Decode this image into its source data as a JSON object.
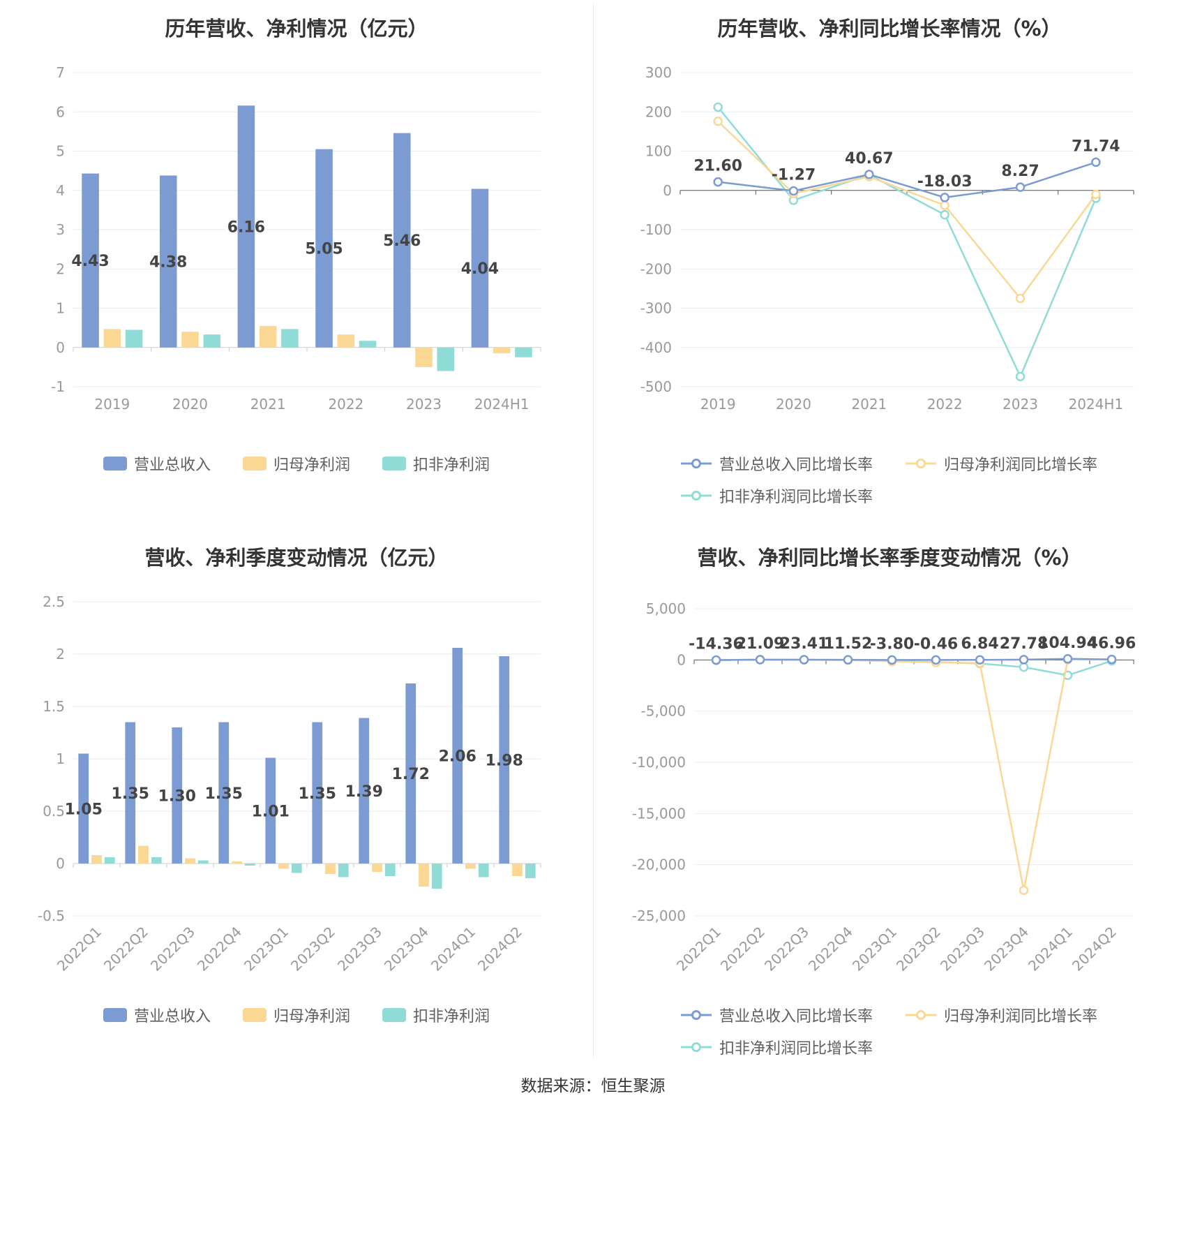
{
  "footer": {
    "text": "数据来源：恒生聚源"
  },
  "theme": {
    "grid": "#E4EDF5",
    "axis_text": "#999999",
    "data_label": "#444444",
    "zero_bar": "#CCCCCC",
    "zero_line": "#555555",
    "title": "#333333",
    "legend_text": "#5F5F5F",
    "divider": "#EAEAEA",
    "blue": "#7B9BD2",
    "yellow": "#FAD893",
    "teal": "#8FDCD6"
  },
  "chart_data": [
    {
      "type": "bar",
      "title": "历年营收、净利情况（亿元）",
      "categories": [
        "2019",
        "2020",
        "2021",
        "2022",
        "2023",
        "2024H1"
      ],
      "series": [
        {
          "name": "营业总收入",
          "color": "#7B9BD2",
          "labeled": true,
          "values": [
            4.43,
            4.38,
            6.16,
            5.05,
            5.46,
            4.04
          ]
        },
        {
          "name": "归母净利润",
          "color": "#FAD893",
          "labeled": false,
          "values": [
            0.47,
            0.4,
            0.55,
            0.33,
            -0.5,
            -0.15
          ]
        },
        {
          "name": "扣非净利润",
          "color": "#8FDCD6",
          "labeled": false,
          "values": [
            0.45,
            0.33,
            0.47,
            0.17,
            -0.6,
            -0.25
          ]
        }
      ],
      "ylim": [
        -1,
        7
      ],
      "ystep": 1,
      "grid": true,
      "legend_position": "bottom"
    },
    {
      "type": "line",
      "title": "历年营收、净利同比增长率情况（%）",
      "categories": [
        "2019",
        "2020",
        "2021",
        "2022",
        "2023",
        "2024H1"
      ],
      "series": [
        {
          "name": "营业总收入同比增长率",
          "color": "#7B9BD2",
          "labeled": true,
          "values": [
            21.6,
            -1.27,
            40.67,
            -18.03,
            8.27,
            71.74
          ]
        },
        {
          "name": "归母净利润同比增长率",
          "color": "#FAD893",
          "labeled": false,
          "values": [
            176,
            -8,
            35,
            -38,
            -275,
            -10
          ]
        },
        {
          "name": "扣非净利润同比增长率",
          "color": "#8FDCD6",
          "labeled": false,
          "values": [
            212,
            -25,
            40,
            -62,
            -474,
            -20
          ]
        }
      ],
      "ylim": [
        -500,
        300
      ],
      "ystep": 100,
      "grid": true,
      "legend_position": "bottom"
    },
    {
      "type": "bar",
      "title": "营收、净利季度变动情况（亿元）",
      "categories": [
        "2022Q1",
        "2022Q2",
        "2022Q3",
        "2022Q4",
        "2023Q1",
        "2023Q2",
        "2023Q3",
        "2023Q4",
        "2024Q1",
        "2024Q2"
      ],
      "series": [
        {
          "name": "营业总收入",
          "color": "#7B9BD2",
          "labeled": true,
          "values": [
            1.05,
            1.35,
            1.3,
            1.35,
            1.01,
            1.35,
            1.39,
            1.72,
            2.06,
            1.98
          ]
        },
        {
          "name": "归母净利润",
          "color": "#FAD893",
          "labeled": false,
          "values": [
            0.08,
            0.17,
            0.05,
            0.02,
            -0.05,
            -0.1,
            -0.08,
            -0.22,
            -0.05,
            -0.12
          ]
        },
        {
          "name": "扣非净利润",
          "color": "#8FDCD6",
          "labeled": false,
          "values": [
            0.06,
            0.06,
            0.03,
            -0.02,
            -0.09,
            -0.13,
            -0.12,
            -0.24,
            -0.13,
            -0.14
          ]
        }
      ],
      "ylim": [
        -0.5,
        2.5
      ],
      "ystep": 0.5,
      "grid": true,
      "legend_position": "bottom"
    },
    {
      "type": "line",
      "title": "营收、净利同比增长率季度变动情况（%）",
      "categories": [
        "2022Q1",
        "2022Q2",
        "2022Q3",
        "2022Q4",
        "2023Q1",
        "2023Q2",
        "2023Q3",
        "2023Q4",
        "2024Q1",
        "2024Q2"
      ],
      "series": [
        {
          "name": "营业总收入同比增长率",
          "color": "#7B9BD2",
          "labeled": true,
          "values": [
            -14.36,
            21.09,
            23.41,
            11.52,
            -3.8,
            -0.46,
            6.84,
            27.78,
            104.94,
            46.96
          ]
        },
        {
          "name": "归母净利润同比增长率",
          "color": "#FAD893",
          "labeled": false,
          "values": [
            -35,
            45,
            15,
            -20,
            -150,
            -250,
            -300,
            -22500,
            25,
            40
          ]
        },
        {
          "name": "扣非净利润同比增长率",
          "color": "#8FDCD6",
          "labeled": false,
          "values": [
            -30,
            40,
            10,
            -15,
            -120,
            -220,
            -350,
            -700,
            -1500,
            -90
          ]
        }
      ],
      "ylim": [
        -25000,
        5000
      ],
      "ystep": 5000,
      "grid": true,
      "legend_position": "bottom"
    }
  ]
}
